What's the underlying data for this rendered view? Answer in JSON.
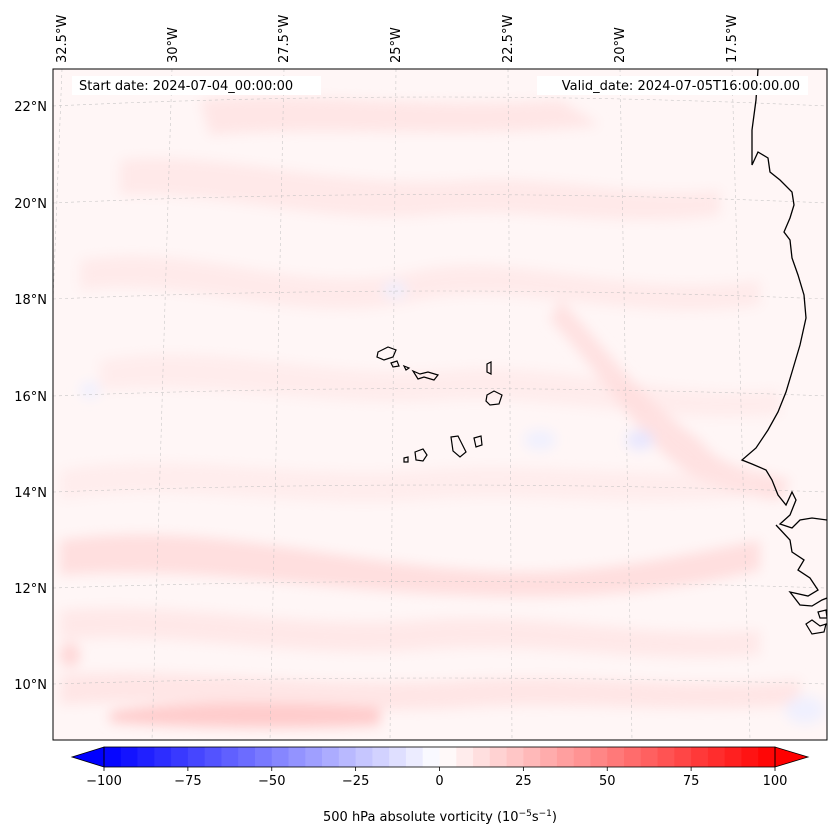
{
  "map": {
    "start_date": "Start date: 2024-07-04_00:00:00",
    "valid_date": "Valid_date: 2024-07-05T16:00:00.00",
    "lon_labels": [
      "32.5°W",
      "30°W",
      "27.5°W",
      "25°W",
      "22.5°W",
      "20°W",
      "17.5°W"
    ],
    "lat_labels": [
      "22°N",
      "20°N",
      "18°N",
      "16°N",
      "14°N",
      "12°N",
      "10°N"
    ]
  },
  "colorbar": {
    "ticks": [
      "−100",
      "−75",
      "−50",
      "−25",
      "0",
      "25",
      "50",
      "75",
      "100"
    ],
    "label": "500 hPa absolute vorticity (10",
    "label_exp1": "−5",
    "label_mid": "s",
    "label_exp2": "−1",
    "label_end": ")",
    "colors": {
      "neg": "#0000ff",
      "mid": "#ffffff",
      "pos": "#ff0000"
    }
  }
}
